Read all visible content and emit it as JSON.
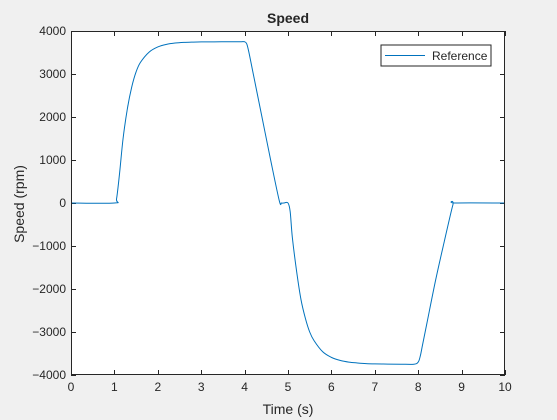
{
  "chart_data": {
    "type": "line",
    "title": "Speed",
    "xlabel": "Time (s)",
    "ylabel": "Speed (rpm)",
    "xlim": [
      0,
      10
    ],
    "ylim": [
      -4000,
      4000
    ],
    "xticks": [
      0,
      1,
      2,
      3,
      4,
      5,
      6,
      7,
      8,
      9,
      10
    ],
    "yticks": [
      -4000,
      -3000,
      -2000,
      -1000,
      0,
      1000,
      2000,
      3000,
      4000
    ],
    "xtick_labels": [
      "0",
      "1",
      "2",
      "3",
      "4",
      "5",
      "6",
      "7",
      "8",
      "9",
      "10"
    ],
    "ytick_labels": [
      "−4000",
      "−3000",
      "−2000",
      "−1000",
      "0",
      "1000",
      "2000",
      "3000",
      "4000"
    ],
    "grid": false,
    "legend_position": "top-right",
    "series": [
      {
        "name": "Reference",
        "color": "#0072bd",
        "x": [
          0,
          1.0,
          1.05,
          1.12,
          1.2,
          1.3,
          1.4,
          1.5,
          1.6,
          1.8,
          2.0,
          2.2,
          2.4,
          2.6,
          2.8,
          3.0,
          3.3,
          3.6,
          3.9,
          4.0,
          4.05,
          4.1,
          4.2,
          4.4,
          4.6,
          4.8,
          4.85,
          4.9,
          5.0,
          5.05,
          5.1,
          5.2,
          5.3,
          5.4,
          5.5,
          5.6,
          5.8,
          6.0,
          6.2,
          6.4,
          6.6,
          6.8,
          7.0,
          7.3,
          7.6,
          7.9,
          8.0,
          8.05,
          8.1,
          8.2,
          8.4,
          8.6,
          8.8,
          8.85,
          10
        ],
        "y": [
          0,
          0,
          100,
          700,
          1500,
          2200,
          2700,
          3050,
          3270,
          3510,
          3630,
          3690,
          3720,
          3735,
          3742,
          3746,
          3748,
          3749,
          3750,
          3750,
          3700,
          3500,
          3000,
          2000,
          1000,
          50,
          0,
          0,
          0,
          -200,
          -800,
          -1600,
          -2250,
          -2680,
          -3000,
          -3200,
          -3460,
          -3590,
          -3660,
          -3700,
          -3720,
          -3735,
          -3742,
          -3747,
          -3749,
          -3750,
          -3700,
          -3550,
          -3300,
          -2800,
          -1800,
          -900,
          -40,
          0,
          0
        ]
      }
    ]
  }
}
